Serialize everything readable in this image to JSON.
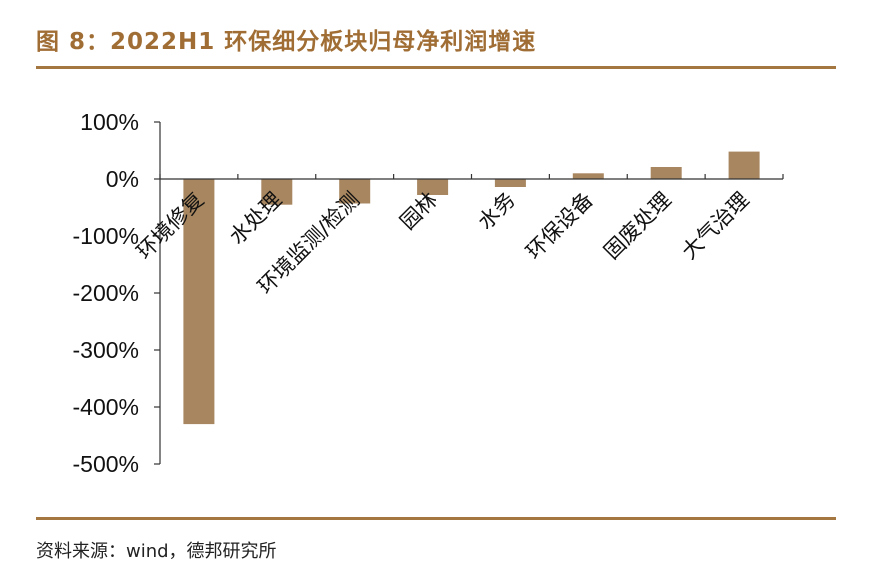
{
  "figure": {
    "title": "图 8：2022H1 环保细分板块归母净利润增速",
    "source": "资料来源：wind，德邦研究所"
  },
  "colors": {
    "bar": "#a88760",
    "accent": "#a3773f",
    "axis": "#333333"
  },
  "chart_data": {
    "type": "bar",
    "title": "2022H1 环保细分板块归母净利润增速",
    "xlabel": "",
    "ylabel": "",
    "categories": [
      "环境修复",
      "水处理",
      "环境监测/检测",
      "园林",
      "水务",
      "环保设备",
      "固废处理",
      "大气治理"
    ],
    "values": [
      -430,
      -45,
      -43,
      -28,
      -14,
      10,
      21,
      48
    ],
    "value_unit": "%",
    "ylim": [
      -500,
      100
    ],
    "yticks": [
      100,
      0,
      -100,
      -200,
      -300,
      -400,
      -500
    ],
    "ytick_labels": [
      "100%",
      "0%",
      "-100%",
      "-200%",
      "-300%",
      "-400%",
      "-500%"
    ],
    "grid": false,
    "legend": "none"
  }
}
